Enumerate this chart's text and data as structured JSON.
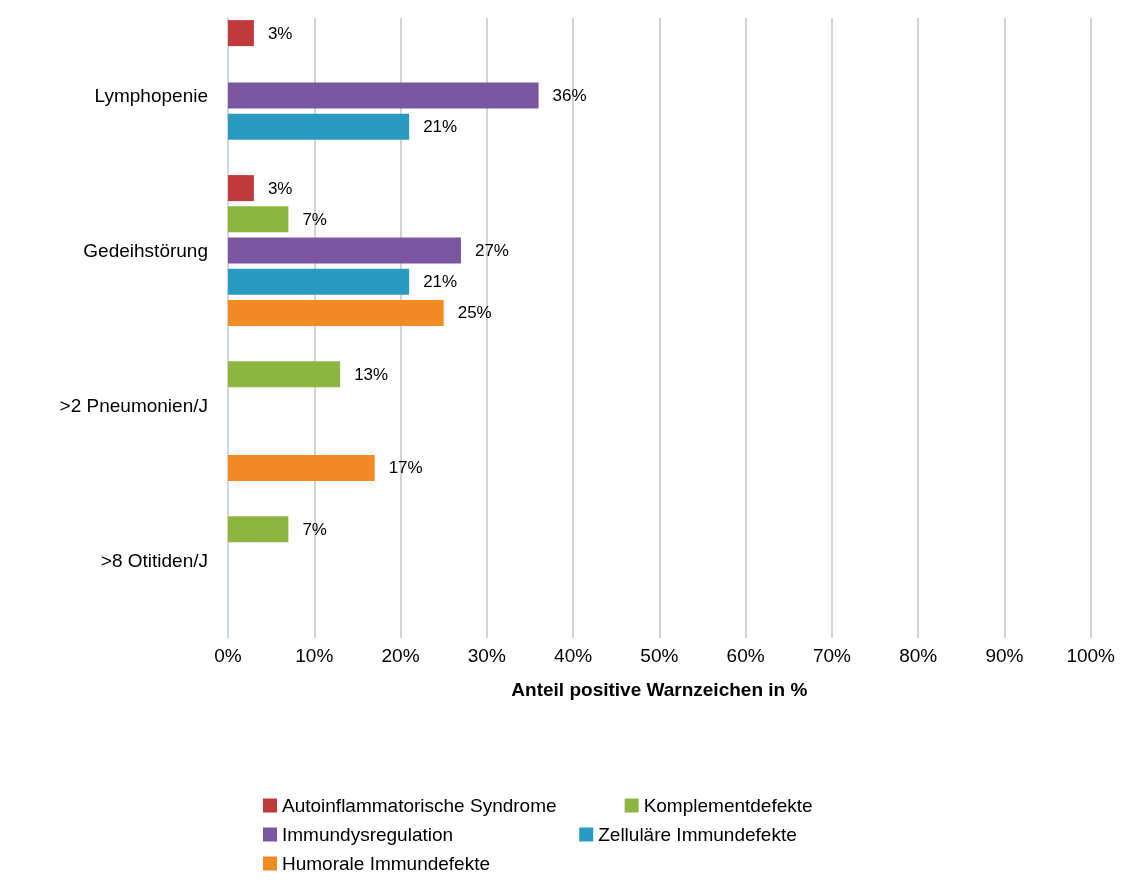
{
  "chart_data": {
    "type": "bar",
    "orientation": "horizontal",
    "xlabel": "Anteil positive Warnzeichen in %",
    "categories": [
      "Lymphopenie",
      "Gedeihstörung",
      ">2 Pneumonien/J",
      ">8 Otitiden/J"
    ],
    "series": [
      {
        "name": "Autoinflammatorische Syndrome",
        "color": "#c0393b",
        "values": [
          3,
          3,
          null,
          null
        ],
        "value_labels": [
          "3%",
          "3%",
          null,
          null
        ]
      },
      {
        "name": "Komplementdefekte",
        "color": "#8db640",
        "values": [
          null,
          7,
          13,
          7
        ],
        "value_labels": [
          null,
          "7%",
          "13%",
          "7%"
        ]
      },
      {
        "name": "Immundysregulation",
        "color": "#7a55a0",
        "values": [
          36,
          27,
          null,
          null
        ],
        "value_labels": [
          "36%",
          "27%",
          null,
          null
        ]
      },
      {
        "name": "Zelluläre Immundefekte",
        "color": "#2a9bc0",
        "values": [
          21,
          21,
          null,
          null
        ],
        "value_labels": [
          "21%",
          "21%",
          null,
          null
        ]
      },
      {
        "name": "Humorale Immundefekte",
        "color": "#f08a24",
        "values": [
          null,
          25,
          17,
          null
        ],
        "value_labels": [
          null,
          "25%",
          "17%",
          null
        ]
      }
    ],
    "xlim": [
      0,
      100
    ],
    "xticks": [
      {
        "value": 0,
        "label": "0%"
      },
      {
        "value": 10,
        "label": "10%"
      },
      {
        "value": 20,
        "label": "20%"
      },
      {
        "value": 30,
        "label": "30%"
      },
      {
        "value": 40,
        "label": "40%"
      },
      {
        "value": 50,
        "label": "50%"
      },
      {
        "value": 60,
        "label": "60%"
      },
      {
        "value": 70,
        "label": "70%"
      },
      {
        "value": 80,
        "label": "80%"
      },
      {
        "value": 90,
        "label": "90%"
      },
      {
        "value": 100,
        "label": "100%"
      }
    ],
    "grid": "x",
    "legend": "bottom"
  }
}
